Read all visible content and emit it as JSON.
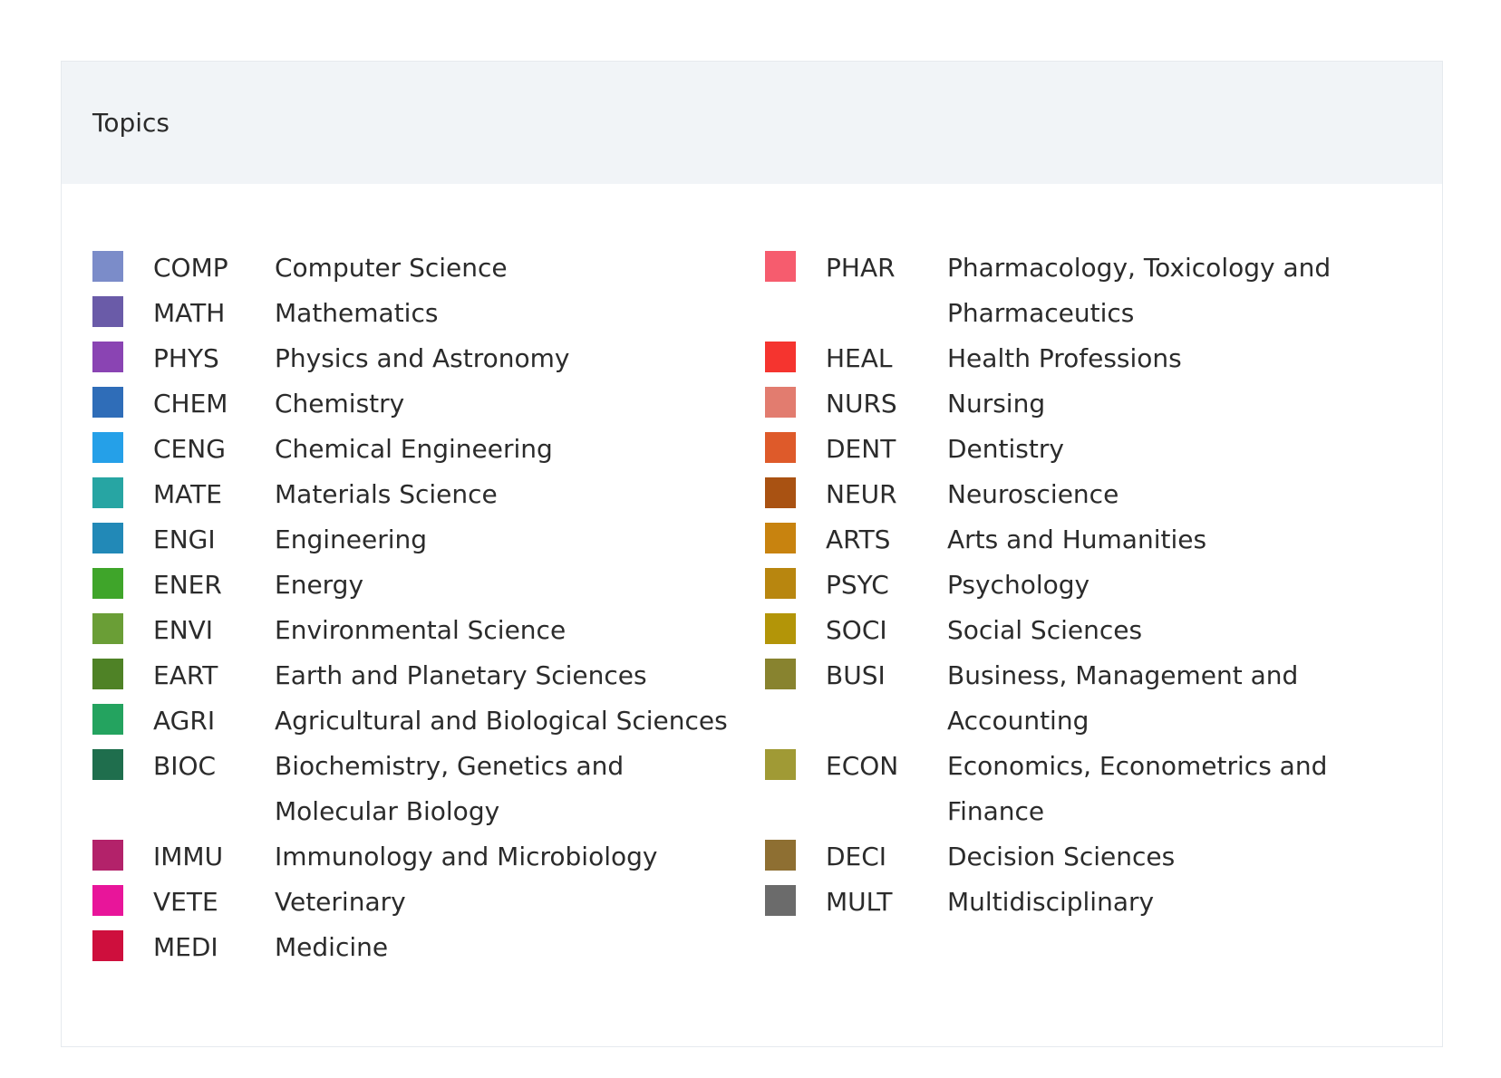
{
  "title": "Topics",
  "columns": [
    {
      "topics": [
        {
          "code": "COMP",
          "name": "Computer Science",
          "color": "#7B8CC9"
        },
        {
          "code": "MATH",
          "name": "Mathematics",
          "color": "#6A5BA8"
        },
        {
          "code": "PHYS",
          "name": "Physics and Astronomy",
          "color": "#8A44B3"
        },
        {
          "code": "CHEM",
          "name": "Chemistry",
          "color": "#2F6DB8"
        },
        {
          "code": "CENG",
          "name": "Chemical Engineering",
          "color": "#25A0E8"
        },
        {
          "code": "MATE",
          "name": "Materials Science",
          "color": "#27A5A3"
        },
        {
          "code": "ENGI",
          "name": "Engineering",
          "color": "#2289B7"
        },
        {
          "code": "ENER",
          "name": "Energy",
          "color": "#3FA52A"
        },
        {
          "code": "ENVI",
          "name": "Environmental Science",
          "color": "#6A9E36"
        },
        {
          "code": "EART",
          "name": "Earth and Planetary Sciences",
          "color": "#4F8226"
        },
        {
          "code": "AGRI",
          "name": "Agricultural and Biological Sciences",
          "color": "#24A35F"
        },
        {
          "code": "BIOC",
          "name": "Biochemistry, Genetics and Molecular Biology",
          "color": "#1F6E4D"
        },
        {
          "code": "IMMU",
          "name": "Immunology and Microbiology",
          "color": "#B3226A"
        },
        {
          "code": "VETE",
          "name": "Veterinary",
          "color": "#E8159A"
        },
        {
          "code": "MEDI",
          "name": "Medicine",
          "color": "#CE0F3D"
        }
      ]
    },
    {
      "topics": [
        {
          "code": "PHAR",
          "name": "Pharmacology, Toxicology and Pharmaceutics",
          "color": "#F65C6E"
        },
        {
          "code": "HEAL",
          "name": "Health Professions",
          "color": "#F5342F"
        },
        {
          "code": "NURS",
          "name": "Nursing",
          "color": "#E27C6F"
        },
        {
          "code": "DENT",
          "name": "Dentistry",
          "color": "#DE5A2A"
        },
        {
          "code": "NEUR",
          "name": "Neuroscience",
          "color": "#A95212"
        },
        {
          "code": "ARTS",
          "name": "Arts and Humanities",
          "color": "#C8830F"
        },
        {
          "code": "PSYC",
          "name": "Psychology",
          "color": "#B8860F"
        },
        {
          "code": "SOCI",
          "name": "Social Sciences",
          "color": "#B39508"
        },
        {
          "code": "BUSI",
          "name": "Business, Management and Accounting",
          "color": "#88832F"
        },
        {
          "code": "ECON",
          "name": "Economics, Econometrics and Finance",
          "color": "#A09A35"
        },
        {
          "code": "DECI",
          "name": "Decision Sciences",
          "color": "#8E6F32"
        },
        {
          "code": "MULT",
          "name": "Multidisciplinary",
          "color": "#6B6B6B"
        }
      ]
    }
  ]
}
